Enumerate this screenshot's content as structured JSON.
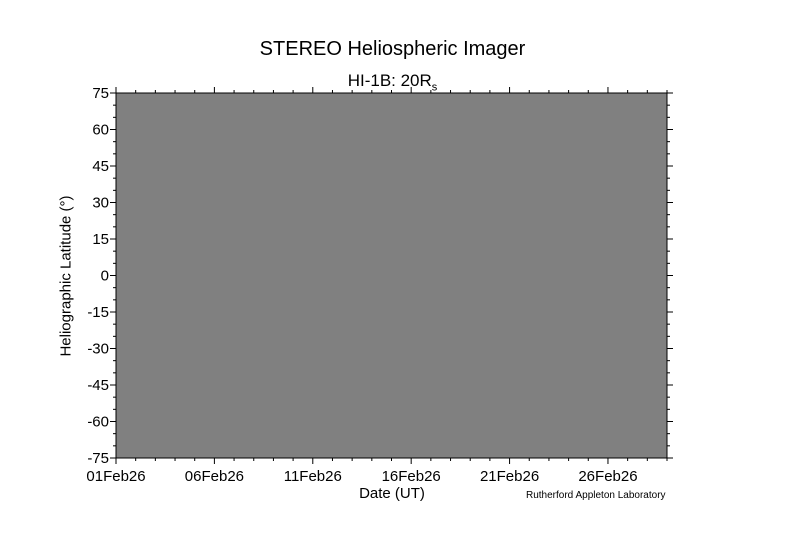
{
  "chart_data": {
    "type": "heatmap",
    "title": "STEREO Heliospheric Imager",
    "subtitle": "HI-1B: 20R",
    "subtitle_subscript": "s",
    "xlabel": "Date (UT)",
    "ylabel": "Heliographic Latitude (°)",
    "x_range": [
      "01Feb26",
      "01Mar26"
    ],
    "x_tick_labels": [
      "01Feb26",
      "06Feb26",
      "11Feb26",
      "16Feb26",
      "21Feb26",
      "26Feb26"
    ],
    "ylim": [
      -75,
      75
    ],
    "y_ticks": [
      75,
      60,
      45,
      30,
      15,
      0,
      -15,
      -30,
      -45,
      -60,
      -75
    ],
    "values": [],
    "fill_color": "#808080",
    "grid": false,
    "annotation": "Rutherford Appleton Laboratory"
  }
}
